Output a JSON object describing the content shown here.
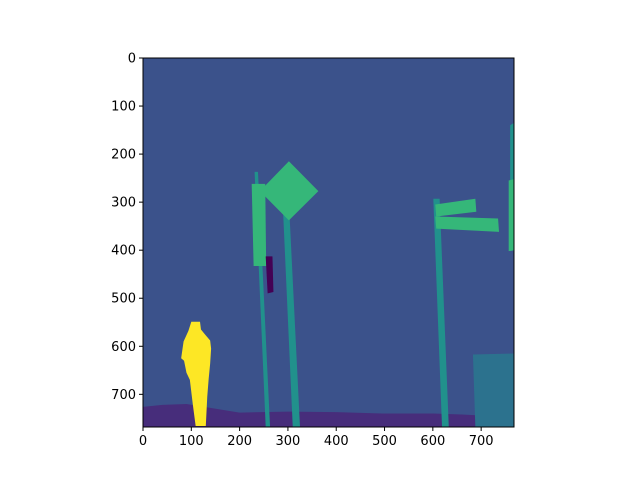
{
  "chart_data": {
    "type": "heatmap",
    "title": "",
    "xlabel": "",
    "ylabel": "",
    "xlim": [
      0,
      768
    ],
    "ylim": [
      768,
      0
    ],
    "x_ticks": [
      0,
      100,
      200,
      300,
      400,
      500,
      600,
      700
    ],
    "y_ticks": [
      0,
      100,
      200,
      300,
      400,
      500,
      600,
      700
    ],
    "x_tick_labels": [
      "0",
      "100",
      "200",
      "300",
      "400",
      "500",
      "600",
      "700"
    ],
    "y_tick_labels": [
      "0",
      "100",
      "200",
      "300",
      "400",
      "500",
      "600",
      "700"
    ],
    "grid": false,
    "legend": "none",
    "colormap": "viridis",
    "colors": {
      "background": "#3b528b",
      "ground": "#472d7b",
      "pole": "#21918c",
      "sign": "#35b779",
      "dark_patch": "#440154",
      "wall": "#2c728e",
      "person": "#fde725"
    },
    "regions": [
      {
        "name": "background",
        "class": "background",
        "points": [
          [
            0,
            0
          ],
          [
            768,
            0
          ],
          [
            768,
            768
          ],
          [
            0,
            768
          ]
        ]
      },
      {
        "name": "ground",
        "class": "ground",
        "points": [
          [
            0,
            726
          ],
          [
            40,
            722
          ],
          [
            90,
            720
          ],
          [
            200,
            738
          ],
          [
            300,
            736
          ],
          [
            400,
            737
          ],
          [
            500,
            740
          ],
          [
            600,
            740
          ],
          [
            660,
            742
          ],
          [
            700,
            744
          ],
          [
            768,
            744
          ],
          [
            768,
            768
          ],
          [
            0,
            768
          ]
        ]
      },
      {
        "name": "right-wall",
        "class": "wall",
        "points": [
          [
            683,
            617
          ],
          [
            768,
            615
          ],
          [
            768,
            768
          ],
          [
            688,
            768
          ]
        ]
      },
      {
        "name": "pole-left",
        "class": "pole",
        "points": [
          [
            231,
            237
          ],
          [
            238,
            237
          ],
          [
            263,
            768
          ],
          [
            254,
            768
          ]
        ]
      },
      {
        "name": "pole-middle",
        "class": "pole",
        "points": [
          [
            290,
            320
          ],
          [
            303,
            320
          ],
          [
            325,
            768
          ],
          [
            310,
            768
          ]
        ]
      },
      {
        "name": "pole-right",
        "class": "pole",
        "points": [
          [
            601,
            293
          ],
          [
            614,
            293
          ],
          [
            633,
            768
          ],
          [
            619,
            768
          ]
        ]
      },
      {
        "name": "pole-far-right",
        "class": "pole",
        "points": [
          [
            760,
            140
          ],
          [
            768,
            135
          ],
          [
            768,
            400
          ],
          [
            760,
            402
          ]
        ]
      },
      {
        "name": "sign-rectangle",
        "class": "sign",
        "points": [
          [
            225,
            262
          ],
          [
            253,
            262
          ],
          [
            255,
            433
          ],
          [
            229,
            433
          ]
        ]
      },
      {
        "name": "sign-diamond",
        "class": "sign",
        "points": [
          [
            302,
            215
          ],
          [
            363,
            277
          ],
          [
            302,
            338
          ],
          [
            242,
            277
          ]
        ]
      },
      {
        "name": "arrow-sign-upper",
        "class": "sign",
        "points": [
          [
            605,
            305
          ],
          [
            688,
            293
          ],
          [
            690,
            320
          ],
          [
            607,
            330
          ]
        ]
      },
      {
        "name": "arrow-sign-lower",
        "class": "sign",
        "points": [
          [
            605,
            330
          ],
          [
            735,
            334
          ],
          [
            737,
            362
          ],
          [
            607,
            355
          ]
        ]
      },
      {
        "name": "sign-right-edge",
        "class": "sign",
        "points": [
          [
            757,
            255
          ],
          [
            768,
            252
          ],
          [
            768,
            400
          ],
          [
            757,
            402
          ]
        ]
      },
      {
        "name": "dark-patch",
        "class": "dark_patch",
        "points": [
          [
            254,
            413
          ],
          [
            268,
            413
          ],
          [
            270,
            487
          ],
          [
            258,
            490
          ]
        ]
      },
      {
        "name": "person",
        "class": "person",
        "points": [
          [
            100,
            549
          ],
          [
            118,
            549
          ],
          [
            120,
            565
          ],
          [
            128,
            575
          ],
          [
            139,
            588
          ],
          [
            141,
            605
          ],
          [
            139,
            636
          ],
          [
            136,
            667
          ],
          [
            133,
            705
          ],
          [
            130,
            766
          ],
          [
            109,
            766
          ],
          [
            103,
            720
          ],
          [
            97,
            670
          ],
          [
            90,
            655
          ],
          [
            85,
            630
          ],
          [
            79,
            625
          ],
          [
            84,
            590
          ],
          [
            94,
            568
          ]
        ]
      }
    ]
  }
}
